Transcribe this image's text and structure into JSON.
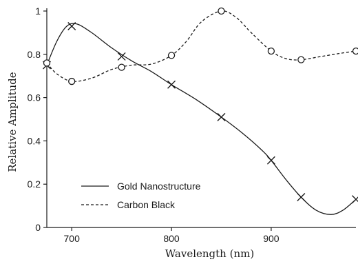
{
  "chart_data": {
    "type": "line",
    "title": "",
    "xlabel": "Wavelength (nm)",
    "ylabel": "Relative Amplitude",
    "xlim": [
      675,
      985
    ],
    "ylim": [
      0,
      1
    ],
    "xticks": [
      700,
      800,
      900
    ],
    "yticks": [
      0,
      0.2,
      0.4,
      0.6,
      0.8,
      1
    ],
    "ytick_labels": [
      "0",
      "0.2",
      "0.4",
      "0.6",
      "0.8",
      "1"
    ],
    "grid": false,
    "legend_position": "bottom-left",
    "series": [
      {
        "name": "Gold Nanostructure",
        "line_style": "solid",
        "marker": "x",
        "color": "#1a1a1a",
        "points": [
          [
            675,
            0.75
          ],
          [
            700,
            0.93
          ],
          [
            750,
            0.79
          ],
          [
            800,
            0.66
          ],
          [
            850,
            0.51
          ],
          [
            900,
            0.31
          ],
          [
            930,
            0.14
          ],
          [
            985,
            0.13
          ]
        ],
        "curve": [
          [
            675,
            0.75
          ],
          [
            685,
            0.86
          ],
          [
            695,
            0.93
          ],
          [
            705,
            0.94
          ],
          [
            720,
            0.9
          ],
          [
            740,
            0.83
          ],
          [
            760,
            0.77
          ],
          [
            780,
            0.72
          ],
          [
            800,
            0.66
          ],
          [
            825,
            0.59
          ],
          [
            850,
            0.51
          ],
          [
            870,
            0.44
          ],
          [
            890,
            0.36
          ],
          [
            900,
            0.31
          ],
          [
            915,
            0.22
          ],
          [
            930,
            0.14
          ],
          [
            945,
            0.08
          ],
          [
            960,
            0.06
          ],
          [
            972,
            0.08
          ],
          [
            985,
            0.13
          ]
        ]
      },
      {
        "name": "Carbon Black",
        "line_style": "dashed",
        "marker": "o",
        "color": "#1a1a1a",
        "points": [
          [
            675,
            0.76
          ],
          [
            700,
            0.675
          ],
          [
            750,
            0.74
          ],
          [
            800,
            0.795
          ],
          [
            850,
            1.0
          ],
          [
            900,
            0.815
          ],
          [
            930,
            0.775
          ],
          [
            985,
            0.815
          ]
        ],
        "curve": [
          [
            675,
            0.76
          ],
          [
            685,
            0.71
          ],
          [
            700,
            0.675
          ],
          [
            720,
            0.69
          ],
          [
            740,
            0.73
          ],
          [
            760,
            0.75
          ],
          [
            780,
            0.755
          ],
          [
            800,
            0.795
          ],
          [
            815,
            0.86
          ],
          [
            830,
            0.95
          ],
          [
            850,
            1.0
          ],
          [
            865,
            0.97
          ],
          [
            880,
            0.9
          ],
          [
            900,
            0.815
          ],
          [
            915,
            0.78
          ],
          [
            930,
            0.775
          ],
          [
            950,
            0.79
          ],
          [
            970,
            0.805
          ],
          [
            985,
            0.815
          ]
        ]
      }
    ]
  }
}
